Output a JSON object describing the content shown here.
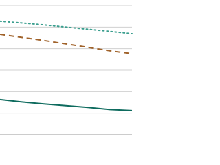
{
  "chart_data": {
    "type": "line",
    "x": [
      0,
      1,
      2,
      3,
      4,
      5,
      6
    ],
    "xlim": [
      0,
      6
    ],
    "ylim": [
      0,
      6
    ],
    "yticks": [
      0,
      1,
      2,
      3,
      4,
      5,
      6
    ],
    "grid": true,
    "series": [
      {
        "color": "#3a9e8e",
        "style": "dotted",
        "values": [
          5.27,
          5.19,
          5.1,
          5.0,
          4.9,
          4.8,
          4.69
        ]
      },
      {
        "color": "#a0622a",
        "style": "dashed",
        "values": [
          4.66,
          4.52,
          4.38,
          4.22,
          4.06,
          3.9,
          3.77
        ]
      },
      {
        "color": "#0e6b5e",
        "style": "solid",
        "values": [
          1.63,
          1.52,
          1.43,
          1.35,
          1.27,
          1.17,
          1.12
        ]
      }
    ]
  }
}
